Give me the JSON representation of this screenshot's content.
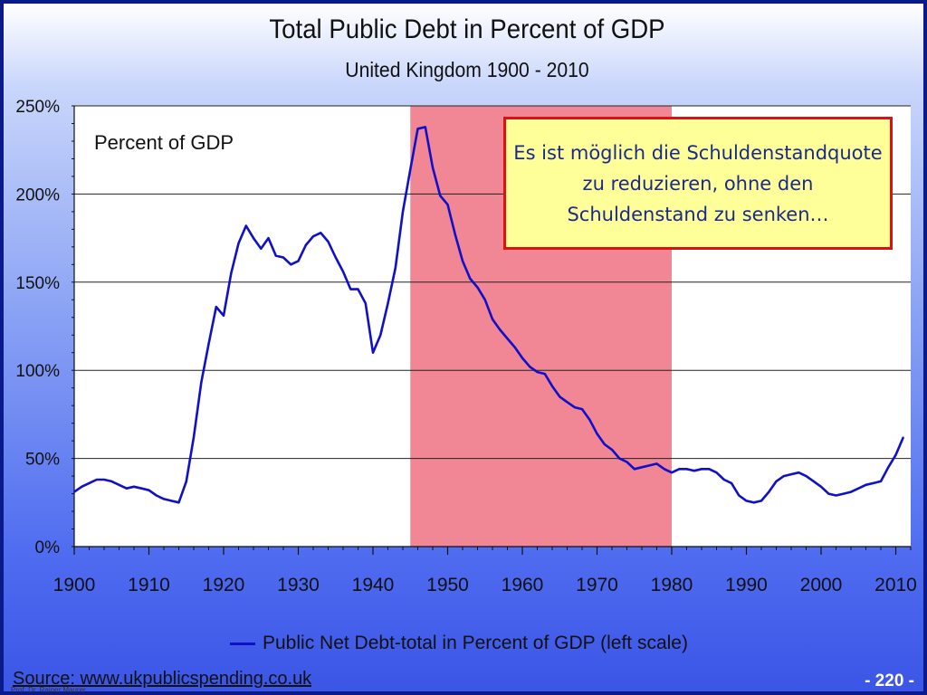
{
  "slide": {
    "source": "Source: www.ukpublicspending.co.uk",
    "author": "Prof. Dr. Rainer Maurer",
    "page_number": "- 220 -"
  },
  "callout": {
    "text": "Es ist möglich die Schuldenstandquote zu reduzieren, ohne den Schuldenstand zu senken…",
    "border_color": "#e01010",
    "background_color": "#ffff99",
    "text_color": "#1a2a8c"
  },
  "chart_data": {
    "type": "line",
    "title": "Total Public Debt in Percent of GDP",
    "subtitle": "United Kingdom 1900 - 2010",
    "inner_label": "Percent of GDP",
    "xlim": [
      1900,
      2012
    ],
    "ylim": [
      0,
      250
    ],
    "x_ticks": [
      1900,
      1910,
      1920,
      1930,
      1940,
      1950,
      1960,
      1970,
      1980,
      1990,
      2000,
      2010
    ],
    "x_tick_labels": [
      "1900",
      "1910",
      "1920",
      "1930",
      "1940",
      "1950",
      "1960",
      "1970",
      "1980",
      "1990",
      "2000",
      "2010"
    ],
    "y_ticks": [
      0,
      50,
      100,
      150,
      200,
      250
    ],
    "y_tick_labels": [
      "0%",
      "50%",
      "100%",
      "150%",
      "200%",
      "250%"
    ],
    "grid": true,
    "legend_position": "bottom-center",
    "shaded_region": {
      "from": 1945,
      "to": 1980,
      "color": "#e8354f"
    },
    "series": [
      {
        "name": "Public Net Debt-total in Percent of GDP (left scale)",
        "color": "#1010c8",
        "x": [
          1900,
          1901,
          1902,
          1903,
          1904,
          1905,
          1906,
          1907,
          1908,
          1909,
          1910,
          1911,
          1912,
          1913,
          1914,
          1915,
          1916,
          1917,
          1918,
          1919,
          1920,
          1921,
          1922,
          1923,
          1924,
          1925,
          1926,
          1927,
          1928,
          1929,
          1930,
          1931,
          1932,
          1933,
          1934,
          1935,
          1936,
          1937,
          1938,
          1939,
          1940,
          1941,
          1942,
          1943,
          1944,
          1945,
          1946,
          1947,
          1948,
          1949,
          1950,
          1951,
          1952,
          1953,
          1954,
          1955,
          1956,
          1957,
          1958,
          1959,
          1960,
          1961,
          1962,
          1963,
          1964,
          1965,
          1966,
          1967,
          1968,
          1969,
          1970,
          1971,
          1972,
          1973,
          1974,
          1975,
          1976,
          1977,
          1978,
          1979,
          1980,
          1981,
          1982,
          1983,
          1984,
          1985,
          1986,
          1987,
          1988,
          1989,
          1990,
          1991,
          1992,
          1993,
          1994,
          1995,
          1996,
          1997,
          1998,
          1999,
          2000,
          2001,
          2002,
          2003,
          2004,
          2005,
          2006,
          2007,
          2008,
          2009,
          2010,
          2011
        ],
        "y": [
          31,
          34,
          36,
          38,
          38,
          37,
          35,
          33,
          34,
          33,
          32,
          29,
          27,
          26,
          25,
          37,
          62,
          93,
          115,
          136,
          131,
          155,
          172,
          182,
          175,
          169,
          175,
          165,
          164,
          160,
          162,
          171,
          176,
          178,
          173,
          164,
          156,
          146,
          146,
          138,
          110,
          120,
          138,
          158,
          190,
          214,
          237,
          238,
          215,
          199,
          194,
          177,
          162,
          152,
          147,
          140,
          129,
          123,
          118,
          113,
          107,
          102,
          99,
          98,
          91,
          85,
          82,
          79,
          78,
          72,
          64,
          58,
          55,
          50,
          48,
          44,
          45,
          46,
          47,
          44,
          42,
          44,
          44,
          43,
          44,
          44,
          42,
          38,
          36,
          29,
          26,
          25,
          26,
          31,
          37,
          40,
          41,
          42,
          40,
          37,
          34,
          30,
          29,
          30,
          31,
          33,
          35,
          36,
          37,
          45,
          52,
          62
        ]
      }
    ]
  }
}
